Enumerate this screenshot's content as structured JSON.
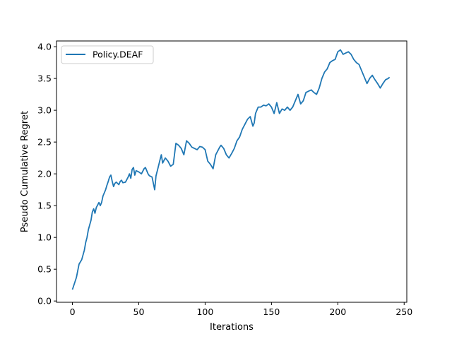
{
  "chart_data": {
    "type": "line",
    "title": "",
    "xlabel": "Iterations",
    "ylabel": "Pseudo Cumulative Regret",
    "xlim": [
      -12,
      252
    ],
    "ylim": [
      -0.02,
      4.09
    ],
    "xticks": [
      0,
      50,
      100,
      150,
      200,
      250
    ],
    "yticks": [
      0.0,
      0.5,
      1.0,
      1.5,
      2.0,
      2.5,
      3.0,
      3.5,
      4.0
    ],
    "xtick_labels": [
      "0",
      "50",
      "100",
      "150",
      "200",
      "250"
    ],
    "ytick_labels": [
      "0.0",
      "0.5",
      "1.0",
      "1.5",
      "2.0",
      "2.5",
      "3.0",
      "3.5",
      "4.0"
    ],
    "grid": false,
    "legend": "top-left",
    "series": [
      {
        "name": "Policy.DEAF",
        "color": "#1f77b4",
        "x": [
          0,
          3,
          5,
          7,
          9,
          10,
          11,
          12,
          14,
          15,
          16,
          17,
          18,
          20,
          21,
          22,
          23,
          25,
          26,
          27,
          28,
          29,
          30,
          31,
          32,
          33,
          35,
          36,
          37,
          38,
          40,
          42,
          43,
          44,
          45,
          46,
          47,
          48,
          50,
          52,
          54,
          55,
          57,
          58,
          60,
          62,
          63,
          64,
          66,
          67,
          68,
          70,
          72,
          74,
          76,
          78,
          80,
          82,
          84,
          86,
          88,
          90,
          92,
          94,
          96,
          98,
          100,
          102,
          104,
          106,
          108,
          110,
          111,
          112,
          114,
          116,
          118,
          120,
          122,
          124,
          126,
          128,
          130,
          132,
          134,
          136,
          137,
          138,
          140,
          142,
          144,
          146,
          148,
          150,
          152,
          154,
          156,
          158,
          160,
          162,
          164,
          166,
          168,
          170,
          172,
          174,
          176,
          178,
          180,
          182,
          184,
          186,
          188,
          190,
          192,
          194,
          196,
          198,
          200,
          202,
          204,
          206,
          208,
          210,
          212,
          214,
          216,
          218,
          220,
          222,
          224,
          226,
          228,
          230,
          232,
          234,
          236,
          238,
          239
        ],
        "y": [
          0.18,
          0.37,
          0.58,
          0.65,
          0.8,
          0.92,
          1.0,
          1.12,
          1.27,
          1.4,
          1.45,
          1.38,
          1.47,
          1.55,
          1.5,
          1.55,
          1.65,
          1.75,
          1.82,
          1.88,
          1.95,
          1.98,
          1.88,
          1.8,
          1.85,
          1.87,
          1.83,
          1.88,
          1.9,
          1.86,
          1.87,
          1.95,
          2.0,
          1.93,
          2.07,
          2.1,
          1.98,
          2.05,
          2.03,
          2.0,
          2.08,
          2.1,
          2.0,
          1.97,
          1.95,
          1.75,
          1.97,
          2.05,
          2.22,
          2.3,
          2.17,
          2.25,
          2.2,
          2.12,
          2.15,
          2.48,
          2.45,
          2.4,
          2.3,
          2.52,
          2.48,
          2.42,
          2.4,
          2.38,
          2.43,
          2.42,
          2.38,
          2.2,
          2.15,
          2.08,
          2.3,
          2.38,
          2.42,
          2.45,
          2.4,
          2.3,
          2.25,
          2.32,
          2.4,
          2.52,
          2.58,
          2.7,
          2.78,
          2.86,
          2.9,
          2.75,
          2.8,
          2.95,
          3.05,
          3.05,
          3.08,
          3.07,
          3.1,
          3.05,
          2.95,
          3.12,
          2.95,
          3.02,
          3.0,
          3.05,
          3.0,
          3.05,
          3.15,
          3.25,
          3.1,
          3.15,
          3.28,
          3.3,
          3.32,
          3.28,
          3.25,
          3.35,
          3.5,
          3.6,
          3.65,
          3.75,
          3.78,
          3.8,
          3.92,
          3.95,
          3.88,
          3.9,
          3.92,
          3.88,
          3.8,
          3.75,
          3.72,
          3.62,
          3.52,
          3.42,
          3.5,
          3.55,
          3.48,
          3.42,
          3.35,
          3.42,
          3.48,
          3.5,
          3.52
        ]
      }
    ]
  }
}
